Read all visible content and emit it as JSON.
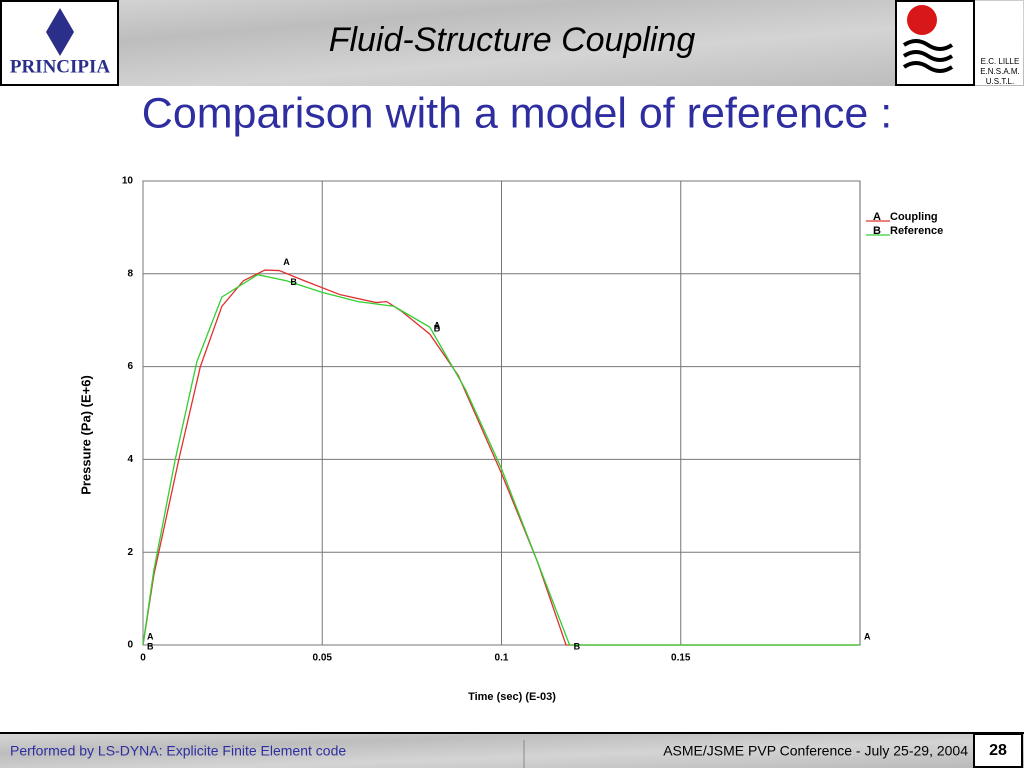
{
  "header": {
    "title": "Fluid-Structure Coupling",
    "left_logo": "PRINCIPIA",
    "right_logo_lines": [
      "E.C. LILLE",
      "E.N.S.A.M.",
      "U.S.T.L."
    ]
  },
  "subtitle": "Comparison with a model of reference :",
  "chart_data": {
    "type": "line",
    "xlabel": "Time (sec) (E-03)",
    "ylabel": "Pressure (Pa) (E+6)",
    "xlim": [
      0,
      0.2
    ],
    "ylim": [
      0,
      10
    ],
    "xticks": [
      0,
      0.05,
      0.1,
      0.15
    ],
    "yticks": [
      0,
      2,
      4,
      6,
      8,
      10
    ],
    "grid": true,
    "series": [
      {
        "name": "Coupling",
        "marker": "A",
        "color": "#e03030",
        "x": [
          0,
          0.003,
          0.01,
          0.016,
          0.022,
          0.028,
          0.034,
          0.038,
          0.045,
          0.055,
          0.065,
          0.068,
          0.072,
          0.08,
          0.088,
          0.1,
          0.11,
          0.118,
          0.2
        ],
        "values": [
          0,
          1.5,
          4,
          6,
          7.3,
          7.85,
          8.08,
          8.07,
          7.85,
          7.55,
          7.38,
          7.4,
          7.2,
          6.7,
          5.8,
          3.7,
          1.8,
          0,
          0
        ]
      },
      {
        "name": "Reference",
        "marker": "B",
        "color": "#30d030",
        "x": [
          0,
          0.003,
          0.009,
          0.015,
          0.022,
          0.032,
          0.04,
          0.05,
          0.06,
          0.07,
          0.08,
          0.09,
          0.1,
          0.11,
          0.119,
          0.2
        ],
        "values": [
          0,
          1.6,
          4,
          6.1,
          7.5,
          7.98,
          7.85,
          7.6,
          7.4,
          7.3,
          6.85,
          5.5,
          3.8,
          1.8,
          0,
          0
        ]
      }
    ]
  },
  "footer": {
    "left": "Performed by LS-DYNA: Explicite Finite Element code",
    "right": "ASME/JSME PVP Conference - July 25-29, 2004",
    "page": "28"
  }
}
